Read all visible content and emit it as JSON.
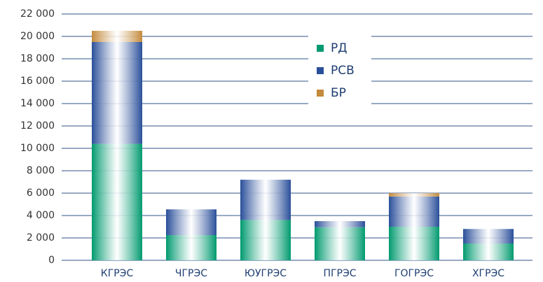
{
  "chart_data": {
    "type": "stacked_bar",
    "categories": [
      "КГРЭС",
      "ЧГРЭС",
      "ЮУГРЭС",
      "ПГРЭС",
      "ГОГРЭС",
      "ХГРЭС"
    ],
    "series": [
      {
        "name": "РД",
        "color": "#009a6e",
        "values": [
          10400,
          2250,
          3600,
          2950,
          3000,
          1500
        ]
      },
      {
        "name": "РСВ",
        "color": "#2a4f9a",
        "values": [
          9100,
          2300,
          3600,
          550,
          2700,
          1300
        ]
      },
      {
        "name": "БР",
        "color": "#c48a3c",
        "values": [
          1000,
          0,
          0,
          0,
          300,
          0
        ]
      }
    ],
    "ylim": [
      0,
      22000
    ],
    "yticks": [
      0,
      {
        "value": 2000,
        "label": "2 000"
      },
      {
        "value": 4000,
        "label": "4 000"
      },
      {
        "value": 6000,
        "label": "6 000"
      },
      {
        "value": 8000,
        "label": "8 000"
      },
      {
        "value": 10000,
        "label": "10 000"
      },
      {
        "value": 12000,
        "label": "12 000"
      },
      {
        "value": 14000,
        "label": "14 000"
      },
      {
        "value": 16000,
        "label": "16 000"
      },
      {
        "value": 18000,
        "label": "18 000"
      },
      {
        "value": 20000,
        "label": "20 000"
      },
      {
        "value": 22000,
        "label": "22 000"
      }
    ],
    "grid": true,
    "legend": "top-right"
  }
}
